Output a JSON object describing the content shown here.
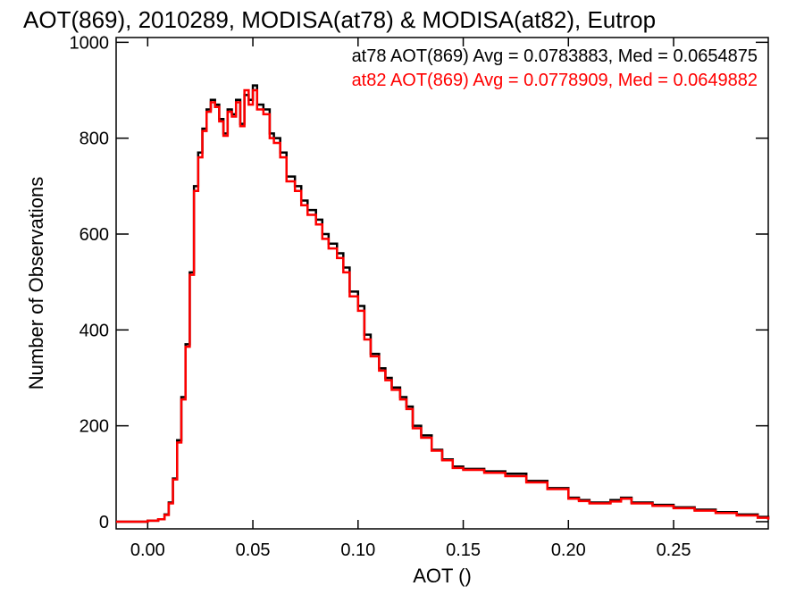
{
  "chart_data": {
    "type": "line",
    "title": "AOT(869), 2010289, MODISA(at78) & MODISA(at82), Eutrop",
    "xlabel": "AOT ()",
    "ylabel": "Number of Observations",
    "xlim": [
      -0.015,
      0.295
    ],
    "ylim": [
      -15,
      1010
    ],
    "x_ticks": [
      0.0,
      0.05,
      0.1,
      0.15,
      0.2,
      0.25
    ],
    "x_tick_labels": [
      "0.00",
      "0.05",
      "0.10",
      "0.15",
      "0.20",
      "0.25"
    ],
    "y_ticks": [
      0,
      200,
      400,
      600,
      800,
      1000
    ],
    "y_tick_labels": [
      "0",
      "200",
      "400",
      "600",
      "800",
      "1000"
    ],
    "grid": false,
    "legend_position": "top-right",
    "series": [
      {
        "name": "at78 AOT(869) Avg = 0.0783883, Med = 0.0654875",
        "color": "#000000",
        "x": [
          -0.015,
          -0.005,
          0.0,
          0.005,
          0.008,
          0.01,
          0.012,
          0.014,
          0.016,
          0.018,
          0.02,
          0.022,
          0.024,
          0.026,
          0.028,
          0.03,
          0.032,
          0.034,
          0.036,
          0.038,
          0.04,
          0.042,
          0.044,
          0.046,
          0.048,
          0.05,
          0.052,
          0.055,
          0.058,
          0.06,
          0.063,
          0.066,
          0.07,
          0.073,
          0.076,
          0.08,
          0.083,
          0.086,
          0.09,
          0.093,
          0.096,
          0.1,
          0.103,
          0.106,
          0.11,
          0.113,
          0.116,
          0.12,
          0.123,
          0.126,
          0.13,
          0.135,
          0.14,
          0.145,
          0.15,
          0.16,
          0.17,
          0.18,
          0.19,
          0.2,
          0.205,
          0.21,
          0.215,
          0.22,
          0.225,
          0.23,
          0.24,
          0.25,
          0.26,
          0.27,
          0.28,
          0.29,
          0.295
        ],
        "y": [
          0,
          0,
          2,
          5,
          15,
          40,
          90,
          170,
          260,
          370,
          520,
          700,
          770,
          820,
          860,
          880,
          870,
          840,
          810,
          860,
          850,
          880,
          830,
          890,
          880,
          910,
          870,
          860,
          810,
          800,
          770,
          720,
          700,
          670,
          650,
          630,
          600,
          580,
          560,
          530,
          480,
          450,
          390,
          350,
          320,
          300,
          280,
          260,
          240,
          200,
          180,
          150,
          130,
          115,
          110,
          105,
          100,
          85,
          70,
          50,
          45,
          40,
          40,
          45,
          50,
          40,
          35,
          30,
          25,
          20,
          15,
          10,
          5
        ]
      },
      {
        "name": "at82 AOT(869) Avg = 0.0778909, Med = 0.0649882",
        "color": "#ff0000",
        "x": [
          -0.015,
          -0.005,
          0.0,
          0.005,
          0.008,
          0.01,
          0.012,
          0.014,
          0.016,
          0.018,
          0.02,
          0.022,
          0.024,
          0.026,
          0.028,
          0.03,
          0.032,
          0.034,
          0.036,
          0.038,
          0.04,
          0.042,
          0.044,
          0.046,
          0.048,
          0.05,
          0.052,
          0.055,
          0.058,
          0.06,
          0.063,
          0.066,
          0.07,
          0.073,
          0.076,
          0.08,
          0.083,
          0.086,
          0.09,
          0.093,
          0.096,
          0.1,
          0.103,
          0.106,
          0.11,
          0.113,
          0.116,
          0.12,
          0.123,
          0.126,
          0.13,
          0.135,
          0.14,
          0.145,
          0.15,
          0.16,
          0.17,
          0.18,
          0.19,
          0.2,
          0.205,
          0.21,
          0.215,
          0.22,
          0.225,
          0.23,
          0.24,
          0.25,
          0.26,
          0.27,
          0.28,
          0.29,
          0.295
        ],
        "y": [
          0,
          0,
          2,
          5,
          14,
          38,
          88,
          165,
          255,
          365,
          515,
          690,
          760,
          815,
          855,
          875,
          865,
          835,
          805,
          855,
          845,
          875,
          825,
          900,
          870,
          900,
          860,
          850,
          800,
          790,
          760,
          710,
          690,
          660,
          640,
          620,
          590,
          570,
          550,
          520,
          470,
          440,
          380,
          345,
          315,
          295,
          275,
          255,
          235,
          195,
          175,
          148,
          128,
          112,
          108,
          102,
          95,
          82,
          68,
          48,
          43,
          38,
          38,
          42,
          48,
          38,
          33,
          28,
          23,
          18,
          13,
          8,
          4
        ]
      }
    ]
  }
}
